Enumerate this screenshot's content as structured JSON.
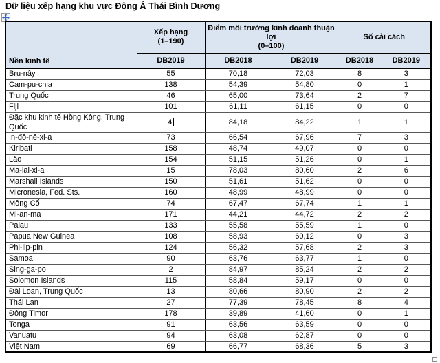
{
  "document": {
    "title": "Dữ liệu xếp hạng khu vực Đông Á Thái Bình Dương"
  },
  "icons": {
    "move_handle": "four-way-move-arrows",
    "resize_handle": "table-resize-square"
  },
  "colors": {
    "header_fill": "#dbe5f1",
    "outer_border": "#000000",
    "inner_horizontal_border": "#595959",
    "text": "#000000",
    "move_arrow_blue": "#3a66c4"
  },
  "table": {
    "header": {
      "economy": "Nền kinh tế",
      "rank_title": "Xếp hạng",
      "rank_range": "(1–190)",
      "score_title": "Điểm môi trường kinh doanh thuận lợi",
      "score_range": "(0–100)",
      "reforms_title": "Số cải cách",
      "sub": [
        "DB2019",
        "DB2018",
        "DB2019",
        "DB2018",
        "DB2019"
      ]
    },
    "caret": {
      "row_index": 4,
      "column": "rank_db2019"
    },
    "rows": [
      {
        "economy": "Bru-nây",
        "rank_db2019": "55",
        "score_db2018": "70,18",
        "score_db2019": "72,03",
        "reforms_db2018": "8",
        "reforms_db2019": "3"
      },
      {
        "economy": "Cam-pu-chia",
        "rank_db2019": "138",
        "score_db2018": "54,39",
        "score_db2019": "54,80",
        "reforms_db2018": "0",
        "reforms_db2019": "1"
      },
      {
        "economy": "Trung Quốc",
        "rank_db2019": "46",
        "score_db2018": "65,00",
        "score_db2019": "73,64",
        "reforms_db2018": "2",
        "reforms_db2019": "7"
      },
      {
        "economy": "Fiji",
        "rank_db2019": "101",
        "score_db2018": "61,11",
        "score_db2019": "61,15",
        "reforms_db2018": "0",
        "reforms_db2019": "0"
      },
      {
        "economy": "Đặc khu kinh tế Hồng Kông, Trung Quốc",
        "rank_db2019": "4",
        "score_db2018": "84,18",
        "score_db2019": "84,22",
        "reforms_db2018": "1",
        "reforms_db2019": "1"
      },
      {
        "economy": "In-đô-nê-xi-a",
        "rank_db2019": "73",
        "score_db2018": "66,54",
        "score_db2019": "67,96",
        "reforms_db2018": "7",
        "reforms_db2019": "3"
      },
      {
        "economy": "Kiribati",
        "rank_db2019": "158",
        "score_db2018": "48,74",
        "score_db2019": "49,07",
        "reforms_db2018": "0",
        "reforms_db2019": "0"
      },
      {
        "economy": "Lào",
        "rank_db2019": "154",
        "score_db2018": "51,15",
        "score_db2019": "51,26",
        "reforms_db2018": "0",
        "reforms_db2019": "1"
      },
      {
        "economy": "Ma-lai-xi-a",
        "rank_db2019": "15",
        "score_db2018": "78,03",
        "score_db2019": "80,60",
        "reforms_db2018": "2",
        "reforms_db2019": "6"
      },
      {
        "economy": "Marshall Islands",
        "rank_db2019": "150",
        "score_db2018": "51,61",
        "score_db2019": "51,62",
        "reforms_db2018": "0",
        "reforms_db2019": "0"
      },
      {
        "economy": "Micronesia, Fed. Sts.",
        "rank_db2019": "160",
        "score_db2018": "48,99",
        "score_db2019": "48,99",
        "reforms_db2018": "0",
        "reforms_db2019": "0"
      },
      {
        "economy": "Mông Cổ",
        "rank_db2019": "74",
        "score_db2018": "67,47",
        "score_db2019": "67,74",
        "reforms_db2018": "1",
        "reforms_db2019": "1"
      },
      {
        "economy": "Mi-an-ma",
        "rank_db2019": "171",
        "score_db2018": "44,21",
        "score_db2019": "44,72",
        "reforms_db2018": "2",
        "reforms_db2019": "2"
      },
      {
        "economy": "Palau",
        "rank_db2019": "133",
        "score_db2018": "55,58",
        "score_db2019": "55,59",
        "reforms_db2018": "1",
        "reforms_db2019": "0"
      },
      {
        "economy": "Papua New Guinea",
        "rank_db2019": "108",
        "score_db2018": "58,93",
        "score_db2019": "60,12",
        "reforms_db2018": "0",
        "reforms_db2019": "3"
      },
      {
        "economy": "Phi-lip-pin",
        "rank_db2019": "124",
        "score_db2018": "56,32",
        "score_db2019": "57,68",
        "reforms_db2018": "2",
        "reforms_db2019": "3"
      },
      {
        "economy": "Samoa",
        "rank_db2019": "90",
        "score_db2018": "63,76",
        "score_db2019": "63,77",
        "reforms_db2018": "1",
        "reforms_db2019": "0"
      },
      {
        "economy": "Sing-ga-po",
        "rank_db2019": "2",
        "score_db2018": "84,97",
        "score_db2019": "85,24",
        "reforms_db2018": "2",
        "reforms_db2019": "2"
      },
      {
        "economy": "Solomon Islands",
        "rank_db2019": "115",
        "score_db2018": "58,84",
        "score_db2019": "59,17",
        "reforms_db2018": "0",
        "reforms_db2019": "0"
      },
      {
        "economy": "Đài Loan, Trung Quốc",
        "rank_db2019": "13",
        "score_db2018": "80,66",
        "score_db2019": "80,90",
        "reforms_db2018": "2",
        "reforms_db2019": "2"
      },
      {
        "economy": "Thái Lan",
        "rank_db2019": "27",
        "score_db2018": "77,39",
        "score_db2019": "78,45",
        "reforms_db2018": "8",
        "reforms_db2019": "4"
      },
      {
        "economy": "Đông Timor",
        "rank_db2019": "178",
        "score_db2018": "39,89",
        "score_db2019": "41,60",
        "reforms_db2018": "0",
        "reforms_db2019": "1"
      },
      {
        "economy": "Tonga",
        "rank_db2019": "91",
        "score_db2018": "63,56",
        "score_db2019": "63,59",
        "reforms_db2018": "0",
        "reforms_db2019": "0"
      },
      {
        "economy": "Vanuatu",
        "rank_db2019": "94",
        "score_db2018": "63,08",
        "score_db2019": "62,87",
        "reforms_db2018": "0",
        "reforms_db2019": "0"
      },
      {
        "economy": "Việt Nam",
        "rank_db2019": "69",
        "score_db2018": "66,77",
        "score_db2019": "68,36",
        "reforms_db2018": "5",
        "reforms_db2019": "3"
      }
    ]
  }
}
